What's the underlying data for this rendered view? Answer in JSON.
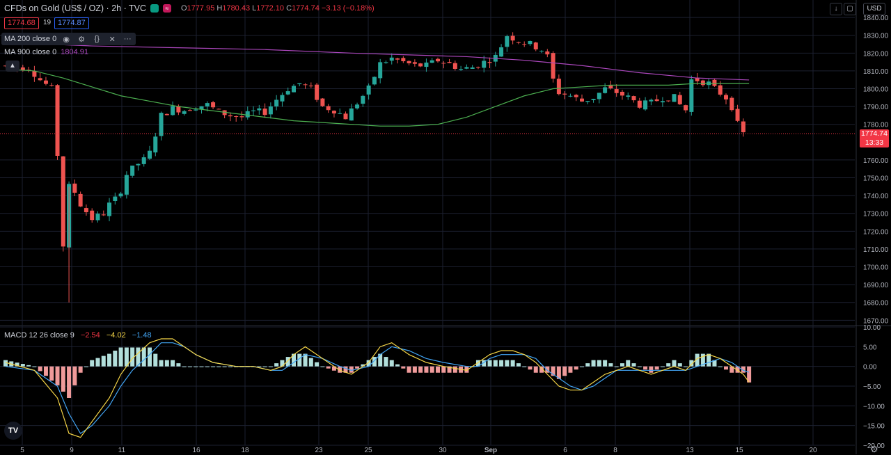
{
  "header": {
    "title": "CFDs on Gold (US$ / OZ) · 2h · TVC",
    "ohlc": {
      "o_label": "O",
      "o": "1777.95",
      "h_label": "H",
      "h": "1780.43",
      "l_label": "L",
      "l": "1772.10",
      "c_label": "C",
      "c": "1774.74",
      "change": "−3.13 (−0.18%)"
    }
  },
  "trade": {
    "bid": "1774.68",
    "spread": "19",
    "ask": "1774.87"
  },
  "indicators": {
    "ma200": {
      "label": "MA 200 close 0"
    },
    "ma900": {
      "label": "MA 900 close 0",
      "value": "1804.91"
    },
    "macd": {
      "label": "MACD 12 26 close 9",
      "hist": "−2.54",
      "macd": "−4.02",
      "signal": "−1.48"
    }
  },
  "price_axis": {
    "currency": "USD",
    "current_price": "1774.74",
    "countdown": "13:33"
  },
  "icons": {
    "collapse": "chevron-up-icon",
    "eye": "eye-icon",
    "settings": "gear-icon",
    "source": "braces-icon",
    "remove": "close-icon",
    "more": "more-icon",
    "down": "arrow-down-icon",
    "maximize": "maximize-icon",
    "logo": "tradingview-logo",
    "chart_settings": "gear-icon"
  },
  "colors": {
    "up": "#26a69a",
    "down": "#ef5350",
    "ma200": "#4caf50",
    "ma900": "#ab47bc",
    "macd_line": "#f5d547",
    "signal_line": "#42a5f5",
    "hist_up": "#b2dfdb",
    "hist_down": "#ef9a9a",
    "current": "#f23645"
  },
  "chart_data": [
    {
      "type": "candlestick",
      "title": "CFDs on Gold (US$ / OZ) · 2h · TVC",
      "y_ticks": [
        "1840.00",
        "1830.00",
        "1820.00",
        "1810.00",
        "1800.00",
        "1790.00",
        "1780.00",
        "1760.00",
        "1750.00",
        "1740.00",
        "1730.00",
        "1720.00",
        "1710.00",
        "1700.00",
        "1690.00",
        "1680.00",
        "1670.00"
      ],
      "ylim": [
        1667,
        1842
      ],
      "x_ticks": [
        "5",
        "9",
        "11",
        "16",
        "18",
        "23",
        "25",
        "30",
        "Sep",
        "6",
        "8",
        "13",
        "15",
        "20"
      ],
      "price_path": [
        [
          0,
          1813
        ],
        [
          3,
          1812
        ],
        [
          5,
          1812
        ],
        [
          7,
          1805
        ],
        [
          9,
          1800
        ],
        [
          10,
          1763
        ],
        [
          11,
          1712
        ],
        [
          12,
          1745
        ],
        [
          13,
          1742
        ],
        [
          14,
          1735
        ],
        [
          16,
          1727
        ],
        [
          18,
          1730
        ],
        [
          19,
          1735
        ],
        [
          20,
          1738
        ],
        [
          21,
          1743
        ],
        [
          22,
          1752
        ],
        [
          23,
          1755
        ],
        [
          24,
          1758
        ],
        [
          25,
          1760
        ],
        [
          26,
          1764
        ],
        [
          28,
          1785
        ],
        [
          30,
          1789
        ],
        [
          32,
          1788
        ],
        [
          34,
          1790
        ],
        [
          36,
          1791
        ],
        [
          38,
          1787
        ],
        [
          40,
          1785
        ],
        [
          42,
          1784
        ],
        [
          44,
          1787
        ],
        [
          46,
          1787
        ],
        [
          48,
          1794
        ],
        [
          50,
          1800
        ],
        [
          52,
          1803
        ],
        [
          54,
          1800
        ],
        [
          56,
          1790
        ],
        [
          58,
          1788
        ],
        [
          60,
          1784
        ],
        [
          62,
          1792
        ],
        [
          64,
          1800
        ],
        [
          66,
          1814
        ],
        [
          68,
          1817
        ],
        [
          70,
          1815
        ],
        [
          72,
          1813
        ],
        [
          74,
          1813
        ],
        [
          76,
          1816
        ],
        [
          78,
          1814
        ],
        [
          80,
          1811
        ],
        [
          82,
          1812
        ],
        [
          84,
          1815
        ],
        [
          86,
          1818
        ],
        [
          88,
          1830
        ],
        [
          90,
          1827
        ],
        [
          92,
          1825
        ],
        [
          94,
          1822
        ],
        [
          95,
          1818
        ],
        [
          96,
          1805
        ],
        [
          97,
          1798
        ],
        [
          99,
          1796
        ],
        [
          101,
          1793
        ],
        [
          103,
          1795
        ],
        [
          105,
          1800
        ],
        [
          107,
          1798
        ],
        [
          109,
          1795
        ],
        [
          111,
          1791
        ],
        [
          113,
          1792
        ],
        [
          115,
          1795
        ],
        [
          117,
          1795
        ],
        [
          118,
          1791
        ],
        [
          119,
          1788
        ],
        [
          120,
          1805
        ],
        [
          121,
          1805
        ],
        [
          123,
          1803
        ],
        [
          124,
          1800
        ],
        [
          126,
          1795
        ],
        [
          127,
          1790
        ],
        [
          128,
          1780
        ],
        [
          129,
          1774.74
        ]
      ],
      "series": [
        {
          "name": "MA 200 close 0",
          "values": [
            [
              0,
              1811
            ],
            [
              5,
              1810
            ],
            [
              10,
              1806
            ],
            [
              15,
              1801
            ],
            [
              20,
              1796
            ],
            [
              25,
              1793
            ],
            [
              30,
              1790
            ],
            [
              35,
              1788
            ],
            [
              40,
              1786
            ],
            [
              45,
              1784
            ],
            [
              50,
              1782
            ],
            [
              55,
              1781
            ],
            [
              60,
              1780
            ],
            [
              65,
              1779
            ],
            [
              70,
              1779
            ],
            [
              75,
              1780
            ],
            [
              80,
              1784
            ],
            [
              85,
              1790
            ],
            [
              90,
              1796
            ],
            [
              95,
              1800
            ],
            [
              100,
              1801
            ],
            [
              105,
              1802
            ],
            [
              110,
              1802
            ],
            [
              115,
              1802
            ],
            [
              120,
              1803
            ],
            [
              125,
              1803
            ],
            [
              129,
              1803
            ]
          ]
        },
        {
          "name": "MA 900 close 0",
          "values": [
            [
              0,
              1826
            ],
            [
              15,
              1824
            ],
            [
              30,
              1823
            ],
            [
              45,
              1822
            ],
            [
              60,
              1820
            ],
            [
              70,
              1819
            ],
            [
              80,
              1818
            ],
            [
              90,
              1816
            ],
            [
              100,
              1813
            ],
            [
              110,
              1809
            ],
            [
              120,
              1806
            ],
            [
              129,
              1804.91
            ]
          ]
        }
      ],
      "current_price": 1774.74
    },
    {
      "type": "line",
      "title": "MACD 12 26 close 9",
      "y_ticks": [
        "10.00",
        "5.00",
        "0.00",
        "−5.00",
        "−10.00",
        "−15.00",
        "−20.00"
      ],
      "ylim": [
        -20,
        10
      ],
      "series": [
        {
          "name": "MACD",
          "values": [
            [
              0,
              1
            ],
            [
              5,
              -1
            ],
            [
              9,
              -8
            ],
            [
              11,
              -17
            ],
            [
              13,
              -18
            ],
            [
              15,
              -14
            ],
            [
              18,
              -8
            ],
            [
              20,
              -2
            ],
            [
              22,
              2
            ],
            [
              25,
              6
            ],
            [
              27,
              7
            ],
            [
              29,
              7
            ],
            [
              31,
              5
            ],
            [
              33,
              3
            ],
            [
              36,
              1
            ],
            [
              40,
              0
            ],
            [
              43,
              0
            ],
            [
              46,
              -1
            ],
            [
              48,
              0
            ],
            [
              50,
              3
            ],
            [
              52,
              5
            ],
            [
              55,
              2
            ],
            [
              58,
              -1
            ],
            [
              60,
              -2
            ],
            [
              63,
              1
            ],
            [
              65,
              5
            ],
            [
              67,
              6
            ],
            [
              70,
              3
            ],
            [
              73,
              1
            ],
            [
              76,
              0
            ],
            [
              80,
              -1
            ],
            [
              82,
              1
            ],
            [
              84,
              3
            ],
            [
              86,
              4
            ],
            [
              88,
              4
            ],
            [
              90,
              3
            ],
            [
              92,
              1
            ],
            [
              94,
              -2
            ],
            [
              96,
              -5
            ],
            [
              98,
              -6
            ],
            [
              100,
              -6
            ],
            [
              102,
              -4
            ],
            [
              104,
              -2
            ],
            [
              106,
              -1
            ],
            [
              108,
              0
            ],
            [
              110,
              -1
            ],
            [
              112,
              -2
            ],
            [
              114,
              -1
            ],
            [
              116,
              0
            ],
            [
              118,
              -1
            ],
            [
              120,
              2
            ],
            [
              122,
              3
            ],
            [
              124,
              2
            ],
            [
              126,
              0
            ],
            [
              128,
              -2
            ],
            [
              129,
              -4.02
            ]
          ]
        },
        {
          "name": "Signal",
          "values": [
            [
              0,
              0
            ],
            [
              5,
              -1
            ],
            [
              9,
              -5
            ],
            [
              11,
              -12
            ],
            [
              13,
              -17
            ],
            [
              15,
              -15
            ],
            [
              18,
              -10
            ],
            [
              20,
              -5
            ],
            [
              22,
              -1
            ],
            [
              25,
              3
            ],
            [
              27,
              6
            ],
            [
              29,
              6
            ],
            [
              31,
              5
            ],
            [
              33,
              3
            ],
            [
              36,
              1
            ],
            [
              40,
              0
            ],
            [
              43,
              0
            ],
            [
              46,
              -1
            ],
            [
              48,
              -1
            ],
            [
              50,
              1
            ],
            [
              52,
              3
            ],
            [
              55,
              2
            ],
            [
              58,
              0
            ],
            [
              60,
              -1
            ],
            [
              63,
              0
            ],
            [
              65,
              3
            ],
            [
              67,
              5
            ],
            [
              70,
              4
            ],
            [
              73,
              2
            ],
            [
              76,
              1
            ],
            [
              80,
              0
            ],
            [
              82,
              0
            ],
            [
              84,
              2
            ],
            [
              86,
              3
            ],
            [
              88,
              3
            ],
            [
              90,
              3
            ],
            [
              92,
              2
            ],
            [
              94,
              -1
            ],
            [
              96,
              -3
            ],
            [
              98,
              -5
            ],
            [
              100,
              -6
            ],
            [
              102,
              -5
            ],
            [
              104,
              -3
            ],
            [
              106,
              -1
            ],
            [
              108,
              -1
            ],
            [
              110,
              -1
            ],
            [
              112,
              -1
            ],
            [
              114,
              -1
            ],
            [
              116,
              -1
            ],
            [
              118,
              -1
            ],
            [
              120,
              0
            ],
            [
              122,
              1
            ],
            [
              124,
              2
            ],
            [
              126,
              1
            ],
            [
              128,
              -1
            ],
            [
              129,
              -1.48
            ]
          ]
        }
      ]
    }
  ]
}
